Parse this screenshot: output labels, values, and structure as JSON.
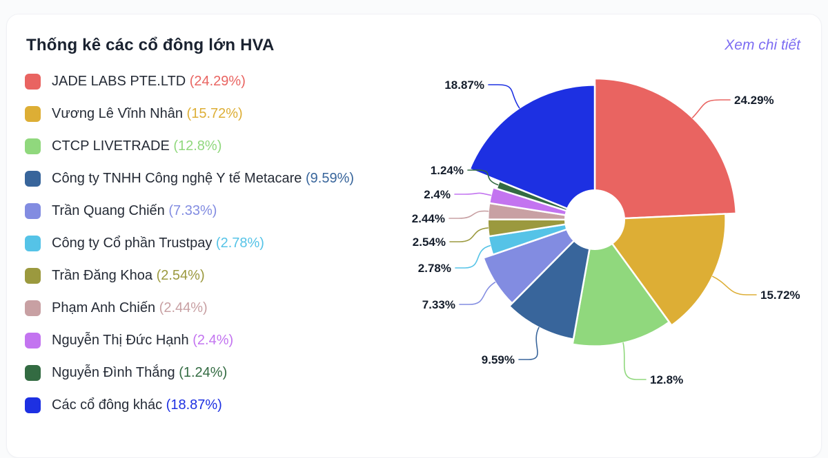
{
  "card": {
    "title": "Thống kê các cổ đông lớn HVA",
    "detail_link": "Xem chi tiết"
  },
  "chart_data": {
    "type": "pie",
    "variant": "variable-radius-rose-donut",
    "title": "Thống kê các cổ đông lớn HVA",
    "unit": "%",
    "legend_position": "left",
    "start_angle": "12-oclock",
    "direction": "clockwise",
    "slices": [
      {
        "label": "JADE LABS PTE.LTD",
        "value": 24.29,
        "display": "24.29%",
        "color": "#e96461"
      },
      {
        "label": "Vương Lê Vĩnh Nhân",
        "value": 15.72,
        "display": "15.72%",
        "color": "#ddae35"
      },
      {
        "label": "CTCP LIVETRADE",
        "value": 12.8,
        "display": "12.8%",
        "color": "#90d87d"
      },
      {
        "label": "Công ty TNHH Công nghệ Y tế Metacare",
        "value": 9.59,
        "display": "9.59%",
        "color": "#38659b"
      },
      {
        "label": "Trần Quang Chiến",
        "value": 7.33,
        "display": "7.33%",
        "color": "#828ce1"
      },
      {
        "label": "Công ty Cổ phần Trustpay",
        "value": 2.78,
        "display": "2.78%",
        "color": "#55c3e7"
      },
      {
        "label": "Trần Đăng Khoa",
        "value": 2.54,
        "display": "2.54%",
        "color": "#9b993e"
      },
      {
        "label": "Phạm Anh Chiến",
        "value": 2.44,
        "display": "2.44%",
        "color": "#c8a0a3"
      },
      {
        "label": "Nguyễn Thị Đức Hạnh",
        "value": 2.4,
        "display": "2.4%",
        "color": "#c374f0"
      },
      {
        "label": "Nguyễn Đình Thắng",
        "value": 1.24,
        "display": "1.24%",
        "color": "#336b42"
      },
      {
        "label": "Các cổ đông khác",
        "value": 18.87,
        "display": "18.87%",
        "color": "#1d30e2"
      }
    ]
  }
}
